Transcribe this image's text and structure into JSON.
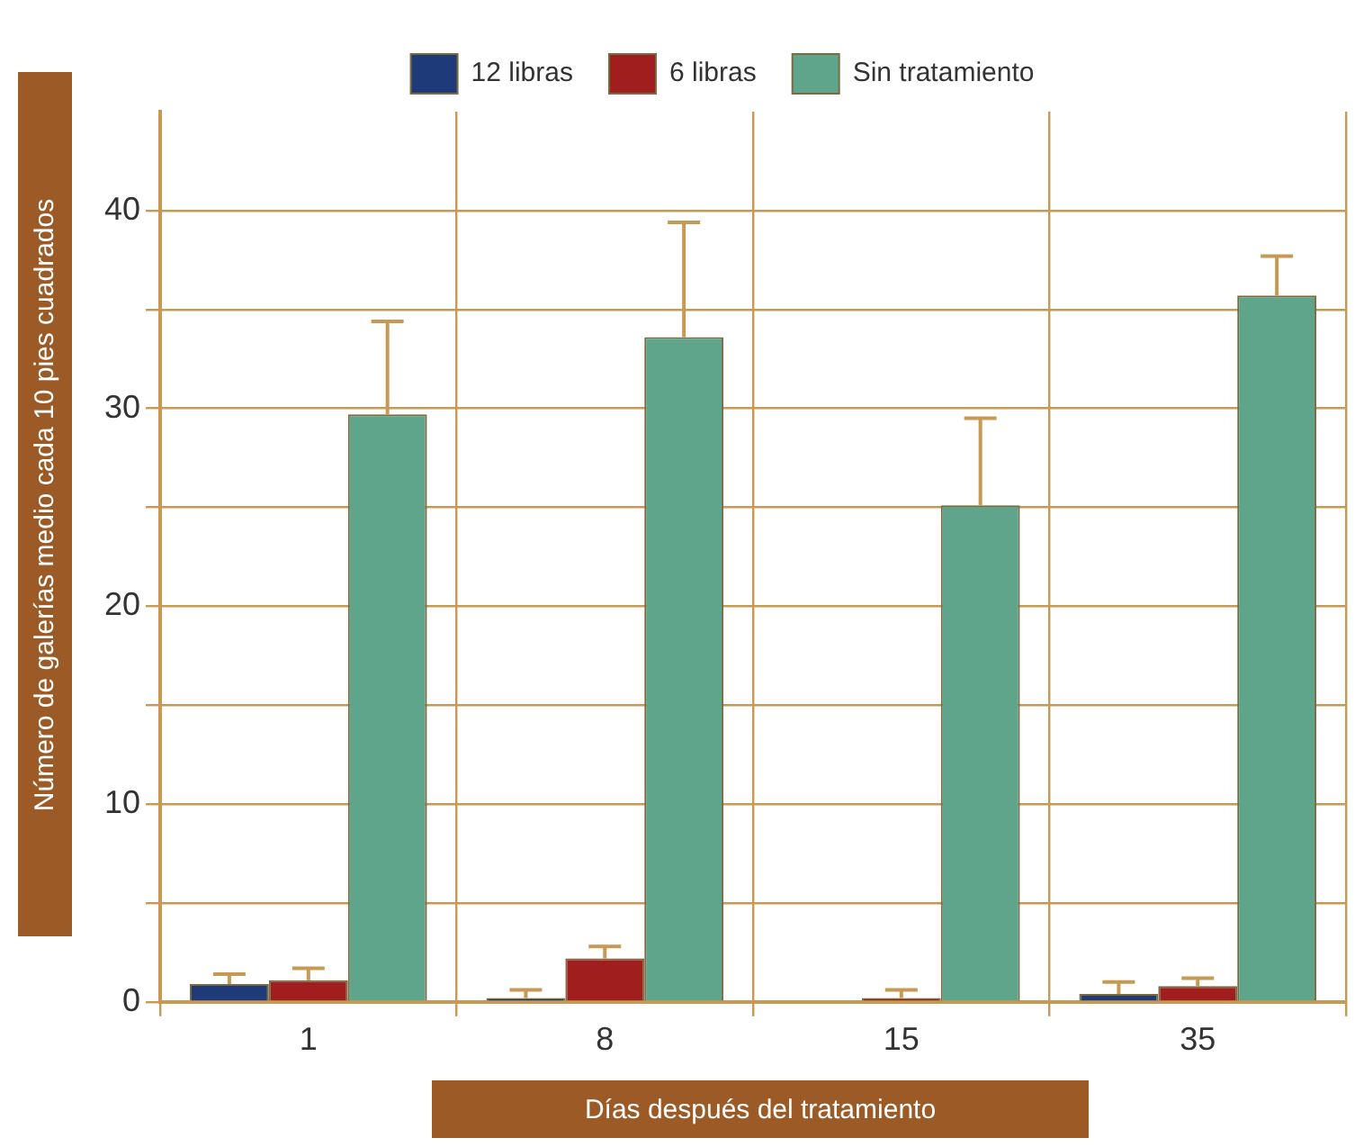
{
  "chart_data": {
    "type": "bar",
    "xlabel": "Días después del tratamiento",
    "ylabel": "Número de galerías medio cada 10 pies cuadrados",
    "categories": [
      "1",
      "8",
      "15",
      "35"
    ],
    "series": [
      {
        "name": "12 libras",
        "color": "#1f3a78",
        "values": [
          0.9,
          0.2,
          0,
          0.4
        ],
        "errors": [
          [
            0.9,
            1.4
          ],
          [
            0.2,
            0.6
          ],
          null,
          [
            0.4,
            1.0
          ]
        ]
      },
      {
        "name": "6 libras",
        "color": "#a01e1e",
        "values": [
          1.1,
          2.2,
          0.2,
          0.8
        ],
        "errors": [
          [
            1.1,
            1.7
          ],
          [
            2.2,
            2.8
          ],
          [
            0.2,
            0.6
          ],
          [
            0.8,
            1.2
          ]
        ]
      },
      {
        "name": "Sin tratamiento",
        "color": "#5ea58b",
        "values": [
          29.7,
          33.6,
          25.1,
          35.7
        ],
        "errors": [
          [
            29.7,
            34.4
          ],
          [
            33.6,
            39.4
          ],
          [
            25.1,
            29.5
          ],
          [
            35.7,
            37.7
          ]
        ]
      }
    ],
    "ylim": [
      0,
      45
    ],
    "yticks": [
      0,
      {
        "value": 5,
        "label": null
      },
      10,
      {
        "value": 15,
        "label": null
      },
      20,
      {
        "value": 25,
        "label": null
      },
      30,
      {
        "value": 35,
        "label": null
      },
      40
    ],
    "grid": true,
    "legend": "top"
  }
}
